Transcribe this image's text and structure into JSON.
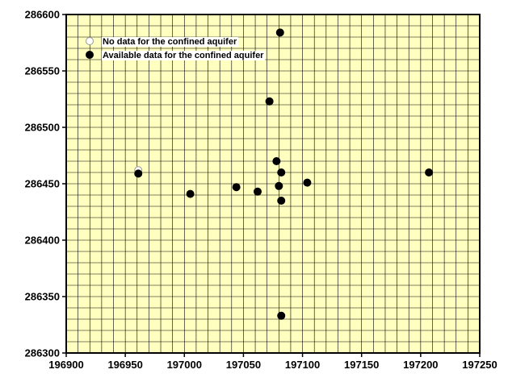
{
  "chart_data": {
    "type": "scatter",
    "title": "",
    "xlabel": "",
    "ylabel": "",
    "xlim": [
      196900,
      197250
    ],
    "ylim": [
      286300,
      286600
    ],
    "x_ticks": [
      196900,
      196950,
      197000,
      197050,
      197100,
      197150,
      197200,
      197250
    ],
    "y_ticks": [
      286300,
      286350,
      286400,
      286450,
      286500,
      286550,
      286600
    ],
    "grid": true,
    "grid_spacing": 10,
    "plot_background": "#ffffc0",
    "legend_position": "top-left",
    "series": [
      {
        "name": "No data for the confined aquifer",
        "marker_fill": "#ffffff",
        "points": [
          {
            "x": 196961,
            "y": 286462
          }
        ]
      },
      {
        "name": "Available data for the confined aquifer",
        "marker_fill": "#000000",
        "points": [
          {
            "x": 197081,
            "y": 286584
          },
          {
            "x": 197072,
            "y": 286523
          },
          {
            "x": 197078,
            "y": 286470
          },
          {
            "x": 197082,
            "y": 286460
          },
          {
            "x": 196961,
            "y": 286459
          },
          {
            "x": 197207,
            "y": 286460
          },
          {
            "x": 197104,
            "y": 286451
          },
          {
            "x": 197080,
            "y": 286448
          },
          {
            "x": 197044,
            "y": 286447
          },
          {
            "x": 197062,
            "y": 286443
          },
          {
            "x": 197005,
            "y": 286441
          },
          {
            "x": 197082,
            "y": 286435
          },
          {
            "x": 197082,
            "y": 286333
          }
        ]
      }
    ]
  }
}
